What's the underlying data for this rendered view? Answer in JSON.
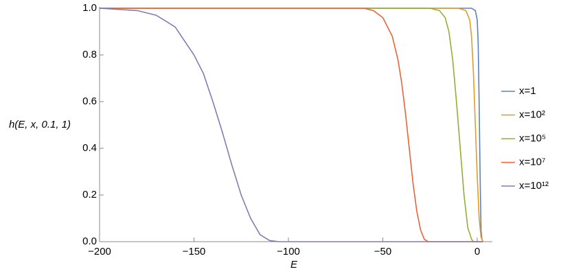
{
  "chart_data": {
    "type": "line",
    "ylabel": "h(E, x, 0.1, 1)",
    "xlabel": "E",
    "xlim": [
      -200,
      8
    ],
    "ylim": [
      0,
      1
    ],
    "xticks": [
      {
        "value": -200,
        "label": "−200"
      },
      {
        "value": -150,
        "label": "−150"
      },
      {
        "value": -100,
        "label": "−100"
      },
      {
        "value": -50,
        "label": "−50"
      },
      {
        "value": 0,
        "label": "0"
      }
    ],
    "yticks": [
      {
        "value": 0,
        "label": "0.0"
      },
      0.2,
      0.4,
      0.6,
      0.8,
      {
        "value": 1,
        "label": "1.0"
      }
    ],
    "legend": "right",
    "series": [
      {
        "name": "x=1",
        "color": "#5e81b5",
        "x": [
          -200,
          -3,
          -1,
          0,
          0.5,
          1,
          1.5,
          2,
          2.5,
          3
        ],
        "values": [
          1,
          1,
          0.99,
          0.95,
          0.85,
          0.6,
          0.3,
          0.05,
          0.01,
          0
        ]
      },
      {
        "name": "x=10²",
        "color": "#e19c24",
        "x": [
          -200,
          -10,
          -6,
          -4,
          -3,
          -2,
          -1,
          0,
          1,
          2,
          3
        ],
        "values": [
          1,
          1,
          0.99,
          0.95,
          0.88,
          0.72,
          0.5,
          0.28,
          0.1,
          0.02,
          0
        ]
      },
      {
        "name": "x=10⁵",
        "color": "#8fb032",
        "x": [
          -200,
          -25,
          -20,
          -17,
          -15,
          -13,
          -11,
          -9,
          -7,
          -5,
          -3,
          -2,
          3
        ],
        "values": [
          1,
          1,
          0.99,
          0.96,
          0.9,
          0.78,
          0.6,
          0.4,
          0.2,
          0.06,
          0.01,
          0,
          0
        ]
      },
      {
        "name": "x=10⁷",
        "color": "#eb6235",
        "x": [
          -200,
          -60,
          -55,
          -50,
          -45,
          -42,
          -40,
          -38,
          -36,
          -34,
          -32,
          -30,
          -28,
          -26,
          3
        ],
        "values": [
          1,
          1,
          0.99,
          0.96,
          0.88,
          0.78,
          0.68,
          0.55,
          0.4,
          0.25,
          0.13,
          0.05,
          0.01,
          0,
          0
        ]
      },
      {
        "name": "x=10¹²",
        "color": "#8778b3",
        "x": [
          -200,
          -180,
          -170,
          -160,
          -150,
          -145,
          -140,
          -135,
          -130,
          -125,
          -120,
          -115,
          -110,
          -105,
          3
        ],
        "values": [
          1,
          0.99,
          0.97,
          0.92,
          0.8,
          0.72,
          0.6,
          0.47,
          0.33,
          0.2,
          0.1,
          0.03,
          0.005,
          0,
          0
        ]
      }
    ]
  }
}
